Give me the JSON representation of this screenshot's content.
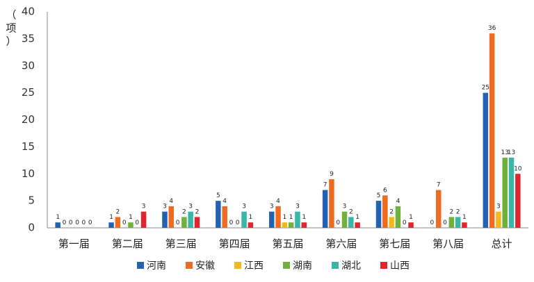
{
  "chart_data": {
    "type": "bar",
    "ylabel_chars": [
      "（",
      "项",
      "）"
    ],
    "categories": [
      "第一届",
      "第二届",
      "第三届",
      "第四届",
      "第五届",
      "第六届",
      "第七届",
      "第八届",
      "总计"
    ],
    "ylim": [
      0,
      40
    ],
    "yticks": [
      0,
      5,
      10,
      15,
      20,
      25,
      30,
      35,
      40
    ],
    "grid": false,
    "legend_position": "bottom",
    "series": [
      {
        "name": "河南",
        "color": "#2461b3",
        "values": [
          1,
          1,
          3,
          5,
          3,
          7,
          5,
          0,
          25
        ]
      },
      {
        "name": "安徽",
        "color": "#ee6b1f",
        "values": [
          0,
          2,
          4,
          4,
          4,
          9,
          6,
          7,
          36
        ]
      },
      {
        "name": "江西",
        "color": "#f3b81a",
        "values": [
          0,
          0,
          0,
          0,
          1,
          0,
          2,
          0,
          3
        ]
      },
      {
        "name": "湖南",
        "color": "#6fb13a",
        "values": [
          0,
          1,
          2,
          0,
          1,
          3,
          4,
          2,
          13
        ]
      },
      {
        "name": "湖北",
        "color": "#3ab6a8",
        "values": [
          0,
          0,
          3,
          3,
          3,
          2,
          0,
          2,
          13
        ]
      },
      {
        "name": "山西",
        "color": "#e0252c",
        "values": [
          0,
          3,
          2,
          1,
          1,
          1,
          1,
          1,
          10
        ]
      }
    ]
  }
}
